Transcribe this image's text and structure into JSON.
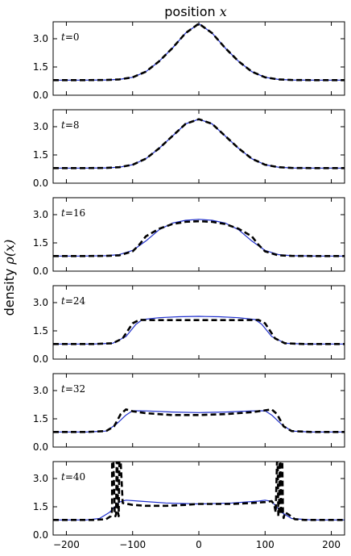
{
  "figure": {
    "title": "position",
    "title_math": "x",
    "ylabel": "density",
    "ylabel_math": "ρ(x)"
  },
  "chart_data": [
    {
      "type": "line",
      "label_var": "t",
      "label_num": "0",
      "xlim": [
        -220,
        220
      ],
      "ylim": [
        0,
        3.9
      ],
      "xticks": [
        -200,
        -100,
        0,
        100,
        200
      ],
      "yticks": [
        0.0,
        1.5,
        3.0
      ],
      "ytick_labels": [
        "0.0",
        "1.5",
        "3.0"
      ],
      "series": [
        {
          "color": "#1f2fcc",
          "style": "solid",
          "x": [
            -220,
            -180,
            -140,
            -120,
            -100,
            -80,
            -60,
            -40,
            -20,
            0,
            20,
            40,
            60,
            80,
            100,
            120,
            140,
            180,
            220
          ],
          "y": [
            0.8,
            0.8,
            0.81,
            0.84,
            0.95,
            1.25,
            1.8,
            2.5,
            3.3,
            3.8,
            3.3,
            2.5,
            1.8,
            1.25,
            0.95,
            0.84,
            0.81,
            0.8,
            0.8
          ]
        },
        {
          "color": "#000000",
          "style": "dashed",
          "x": [
            -220,
            -180,
            -140,
            -120,
            -100,
            -80,
            -60,
            -40,
            -20,
            0,
            20,
            40,
            60,
            80,
            100,
            120,
            140,
            180,
            220
          ],
          "y": [
            0.8,
            0.8,
            0.81,
            0.84,
            0.95,
            1.25,
            1.8,
            2.5,
            3.3,
            3.8,
            3.3,
            2.5,
            1.8,
            1.25,
            0.95,
            0.84,
            0.81,
            0.8,
            0.8
          ]
        }
      ]
    },
    {
      "type": "line",
      "label_var": "t",
      "label_num": "8",
      "xlim": [
        -220,
        220
      ],
      "ylim": [
        0,
        3.9
      ],
      "xticks": [
        -200,
        -100,
        0,
        100,
        200
      ],
      "yticks": [
        0.0,
        1.5,
        3.0
      ],
      "ytick_labels": [
        "0.0",
        "1.5",
        "3.0"
      ],
      "series": [
        {
          "color": "#1f2fcc",
          "style": "solid",
          "x": [
            -220,
            -180,
            -140,
            -120,
            -100,
            -80,
            -60,
            -40,
            -20,
            0,
            20,
            40,
            60,
            80,
            100,
            120,
            140,
            180,
            220
          ],
          "y": [
            0.8,
            0.8,
            0.81,
            0.85,
            0.98,
            1.3,
            1.85,
            2.5,
            3.15,
            3.4,
            3.15,
            2.5,
            1.85,
            1.3,
            0.98,
            0.85,
            0.81,
            0.8,
            0.8
          ]
        },
        {
          "color": "#000000",
          "style": "dashed",
          "x": [
            -220,
            -180,
            -140,
            -120,
            -100,
            -80,
            -60,
            -40,
            -20,
            0,
            20,
            40,
            60,
            80,
            100,
            120,
            140,
            180,
            220
          ],
          "y": [
            0.8,
            0.8,
            0.81,
            0.85,
            0.98,
            1.3,
            1.85,
            2.5,
            3.15,
            3.4,
            3.15,
            2.5,
            1.85,
            1.3,
            0.98,
            0.85,
            0.81,
            0.8,
            0.8
          ]
        }
      ]
    },
    {
      "type": "line",
      "label_var": "t",
      "label_num": "16",
      "xlim": [
        -220,
        220
      ],
      "ylim": [
        0,
        3.9
      ],
      "xticks": [
        -200,
        -100,
        0,
        100,
        200
      ],
      "yticks": [
        0.0,
        1.5,
        3.0
      ],
      "ytick_labels": [
        "0.0",
        "1.5",
        "3.0"
      ],
      "series": [
        {
          "color": "#1f2fcc",
          "style": "solid",
          "x": [
            -220,
            -180,
            -140,
            -120,
            -100,
            -80,
            -60,
            -40,
            -20,
            0,
            20,
            40,
            60,
            80,
            100,
            120,
            140,
            180,
            220
          ],
          "y": [
            0.8,
            0.8,
            0.82,
            0.88,
            1.1,
            1.6,
            2.2,
            2.55,
            2.7,
            2.75,
            2.7,
            2.55,
            2.2,
            1.6,
            1.1,
            0.88,
            0.82,
            0.8,
            0.8
          ]
        },
        {
          "color": "#000000",
          "style": "dashed",
          "x": [
            -220,
            -180,
            -140,
            -120,
            -100,
            -90,
            -80,
            -60,
            -40,
            -20,
            0,
            20,
            40,
            60,
            80,
            90,
            100,
            120,
            140,
            180,
            220
          ],
          "y": [
            0.8,
            0.8,
            0.81,
            0.84,
            1.05,
            1.4,
            1.85,
            2.25,
            2.5,
            2.62,
            2.65,
            2.62,
            2.5,
            2.25,
            1.85,
            1.4,
            1.05,
            0.84,
            0.81,
            0.8,
            0.8
          ]
        }
      ]
    },
    {
      "type": "line",
      "label_var": "t",
      "label_num": "24",
      "xlim": [
        -220,
        220
      ],
      "ylim": [
        0,
        3.9
      ],
      "xticks": [
        -200,
        -100,
        0,
        100,
        200
      ],
      "yticks": [
        0.0,
        1.5,
        3.0
      ],
      "ytick_labels": [
        "0.0",
        "1.5",
        "3.0"
      ],
      "series": [
        {
          "color": "#1f2fcc",
          "style": "solid",
          "x": [
            -220,
            -160,
            -130,
            -110,
            -95,
            -85,
            -60,
            -30,
            0,
            30,
            60,
            85,
            95,
            110,
            130,
            160,
            220
          ],
          "y": [
            0.8,
            0.8,
            0.84,
            1.2,
            1.85,
            2.1,
            2.2,
            2.25,
            2.27,
            2.25,
            2.2,
            2.1,
            1.85,
            1.2,
            0.84,
            0.8,
            0.8
          ]
        },
        {
          "color": "#000000",
          "style": "dashed",
          "x": [
            -220,
            -160,
            -130,
            -115,
            -100,
            -90,
            -60,
            -30,
            0,
            30,
            60,
            90,
            100,
            115,
            130,
            160,
            220
          ],
          "y": [
            0.8,
            0.8,
            0.84,
            1.1,
            1.9,
            2.08,
            2.07,
            2.07,
            2.07,
            2.07,
            2.07,
            2.08,
            1.9,
            1.1,
            0.84,
            0.8,
            0.8
          ]
        }
      ]
    },
    {
      "type": "line",
      "label_var": "t",
      "label_num": "32",
      "xlim": [
        -220,
        220
      ],
      "ylim": [
        0,
        3.9
      ],
      "xticks": [
        -200,
        -100,
        0,
        100,
        200
      ],
      "yticks": [
        0.0,
        1.5,
        3.0
      ],
      "ytick_labels": [
        "0.0",
        "1.5",
        "3.0"
      ],
      "series": [
        {
          "color": "#1f2fcc",
          "style": "solid",
          "x": [
            -220,
            -170,
            -140,
            -125,
            -110,
            -100,
            -80,
            -40,
            0,
            40,
            80,
            100,
            110,
            125,
            140,
            170,
            220
          ],
          "y": [
            0.8,
            0.8,
            0.85,
            1.2,
            1.7,
            1.93,
            1.92,
            1.86,
            1.83,
            1.86,
            1.92,
            1.93,
            1.7,
            1.2,
            0.85,
            0.8,
            0.8
          ]
        },
        {
          "color": "#000000",
          "style": "dashed",
          "x": [
            -220,
            -170,
            -140,
            -128,
            -118,
            -110,
            -100,
            -80,
            -40,
            0,
            40,
            80,
            100,
            110,
            118,
            128,
            140,
            170,
            220
          ],
          "y": [
            0.8,
            0.8,
            0.85,
            1.1,
            1.75,
            2.0,
            1.9,
            1.8,
            1.7,
            1.7,
            1.75,
            1.85,
            1.95,
            2.0,
            1.75,
            1.1,
            0.85,
            0.8,
            0.8
          ]
        }
      ]
    },
    {
      "type": "line",
      "label_var": "t",
      "label_num": "40",
      "xlim": [
        -220,
        220
      ],
      "ylim": [
        0,
        3.9
      ],
      "xticks": [
        -200,
        -100,
        0,
        100,
        200
      ],
      "yticks": [
        0.0,
        1.5,
        3.0
      ],
      "ytick_labels": [
        "0.0",
        "1.5",
        "3.0"
      ],
      "series": [
        {
          "color": "#1f2fcc",
          "style": "solid",
          "x": [
            -220,
            -170,
            -150,
            -135,
            -120,
            -110,
            -90,
            -50,
            0,
            50,
            90,
            100,
            110,
            125,
            140,
            170,
            220
          ],
          "y": [
            0.8,
            0.8,
            0.88,
            1.2,
            1.75,
            1.85,
            1.8,
            1.7,
            1.65,
            1.7,
            1.8,
            1.85,
            1.78,
            1.2,
            0.88,
            0.8,
            0.8
          ]
        },
        {
          "color": "#000000",
          "style": "dashed",
          "x": [
            -220,
            -160,
            -140,
            -133,
            -131,
            -131,
            -129,
            -127,
            -126,
            -125,
            -124,
            -123,
            -122,
            -121,
            -120,
            -118,
            -115,
            -100,
            -80,
            -50,
            -20,
            0,
            20,
            50,
            80,
            100,
            110,
            114,
            116,
            118,
            119,
            120,
            121,
            122,
            123,
            124,
            125,
            126,
            127,
            128,
            130,
            135,
            145,
            160,
            220
          ],
          "y": [
            0.8,
            0.8,
            0.84,
            1.0,
            1.3,
            3.9,
            3.9,
            1.2,
            1.0,
            1.1,
            3.9,
            3.9,
            1.2,
            1.0,
            3.9,
            3.9,
            1.7,
            1.6,
            1.55,
            1.55,
            1.6,
            1.65,
            1.65,
            1.65,
            1.7,
            1.75,
            1.8,
            1.6,
            1.2,
            3.9,
            3.9,
            1.0,
            1.3,
            3.9,
            3.9,
            1.1,
            3.9,
            3.9,
            1.2,
            0.9,
            1.2,
            1.1,
            0.84,
            0.8,
            0.8
          ]
        }
      ]
    }
  ]
}
